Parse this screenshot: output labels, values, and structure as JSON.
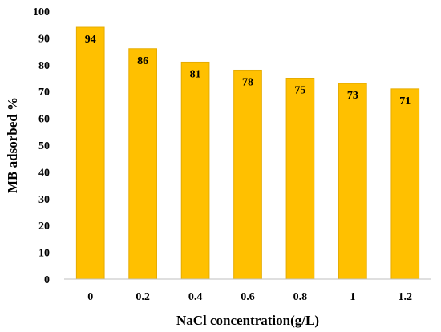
{
  "chart_data": {
    "type": "bar",
    "title": "",
    "xlabel": "NaCl concentration(g/L)",
    "ylabel": "MB adsorbed %",
    "categories": [
      "0",
      "0.2",
      "0.4",
      "0.6",
      "0.8",
      "1",
      "1.2"
    ],
    "values": [
      94,
      86,
      81,
      78,
      75,
      73,
      71
    ],
    "data_labels": [
      "94",
      "86",
      "81",
      "78",
      "75",
      "73",
      "71"
    ],
    "ylim": [
      0,
      100
    ],
    "yticks": [
      "0",
      "10",
      "20",
      "30",
      "40",
      "50",
      "60",
      "70",
      "80",
      "90",
      "100"
    ],
    "grid": false,
    "legend": "none",
    "colors": {
      "bar_fill": "#FFC000",
      "bar_stroke": "#E6AC00",
      "axis": "#000000",
      "text": "#000000"
    }
  }
}
